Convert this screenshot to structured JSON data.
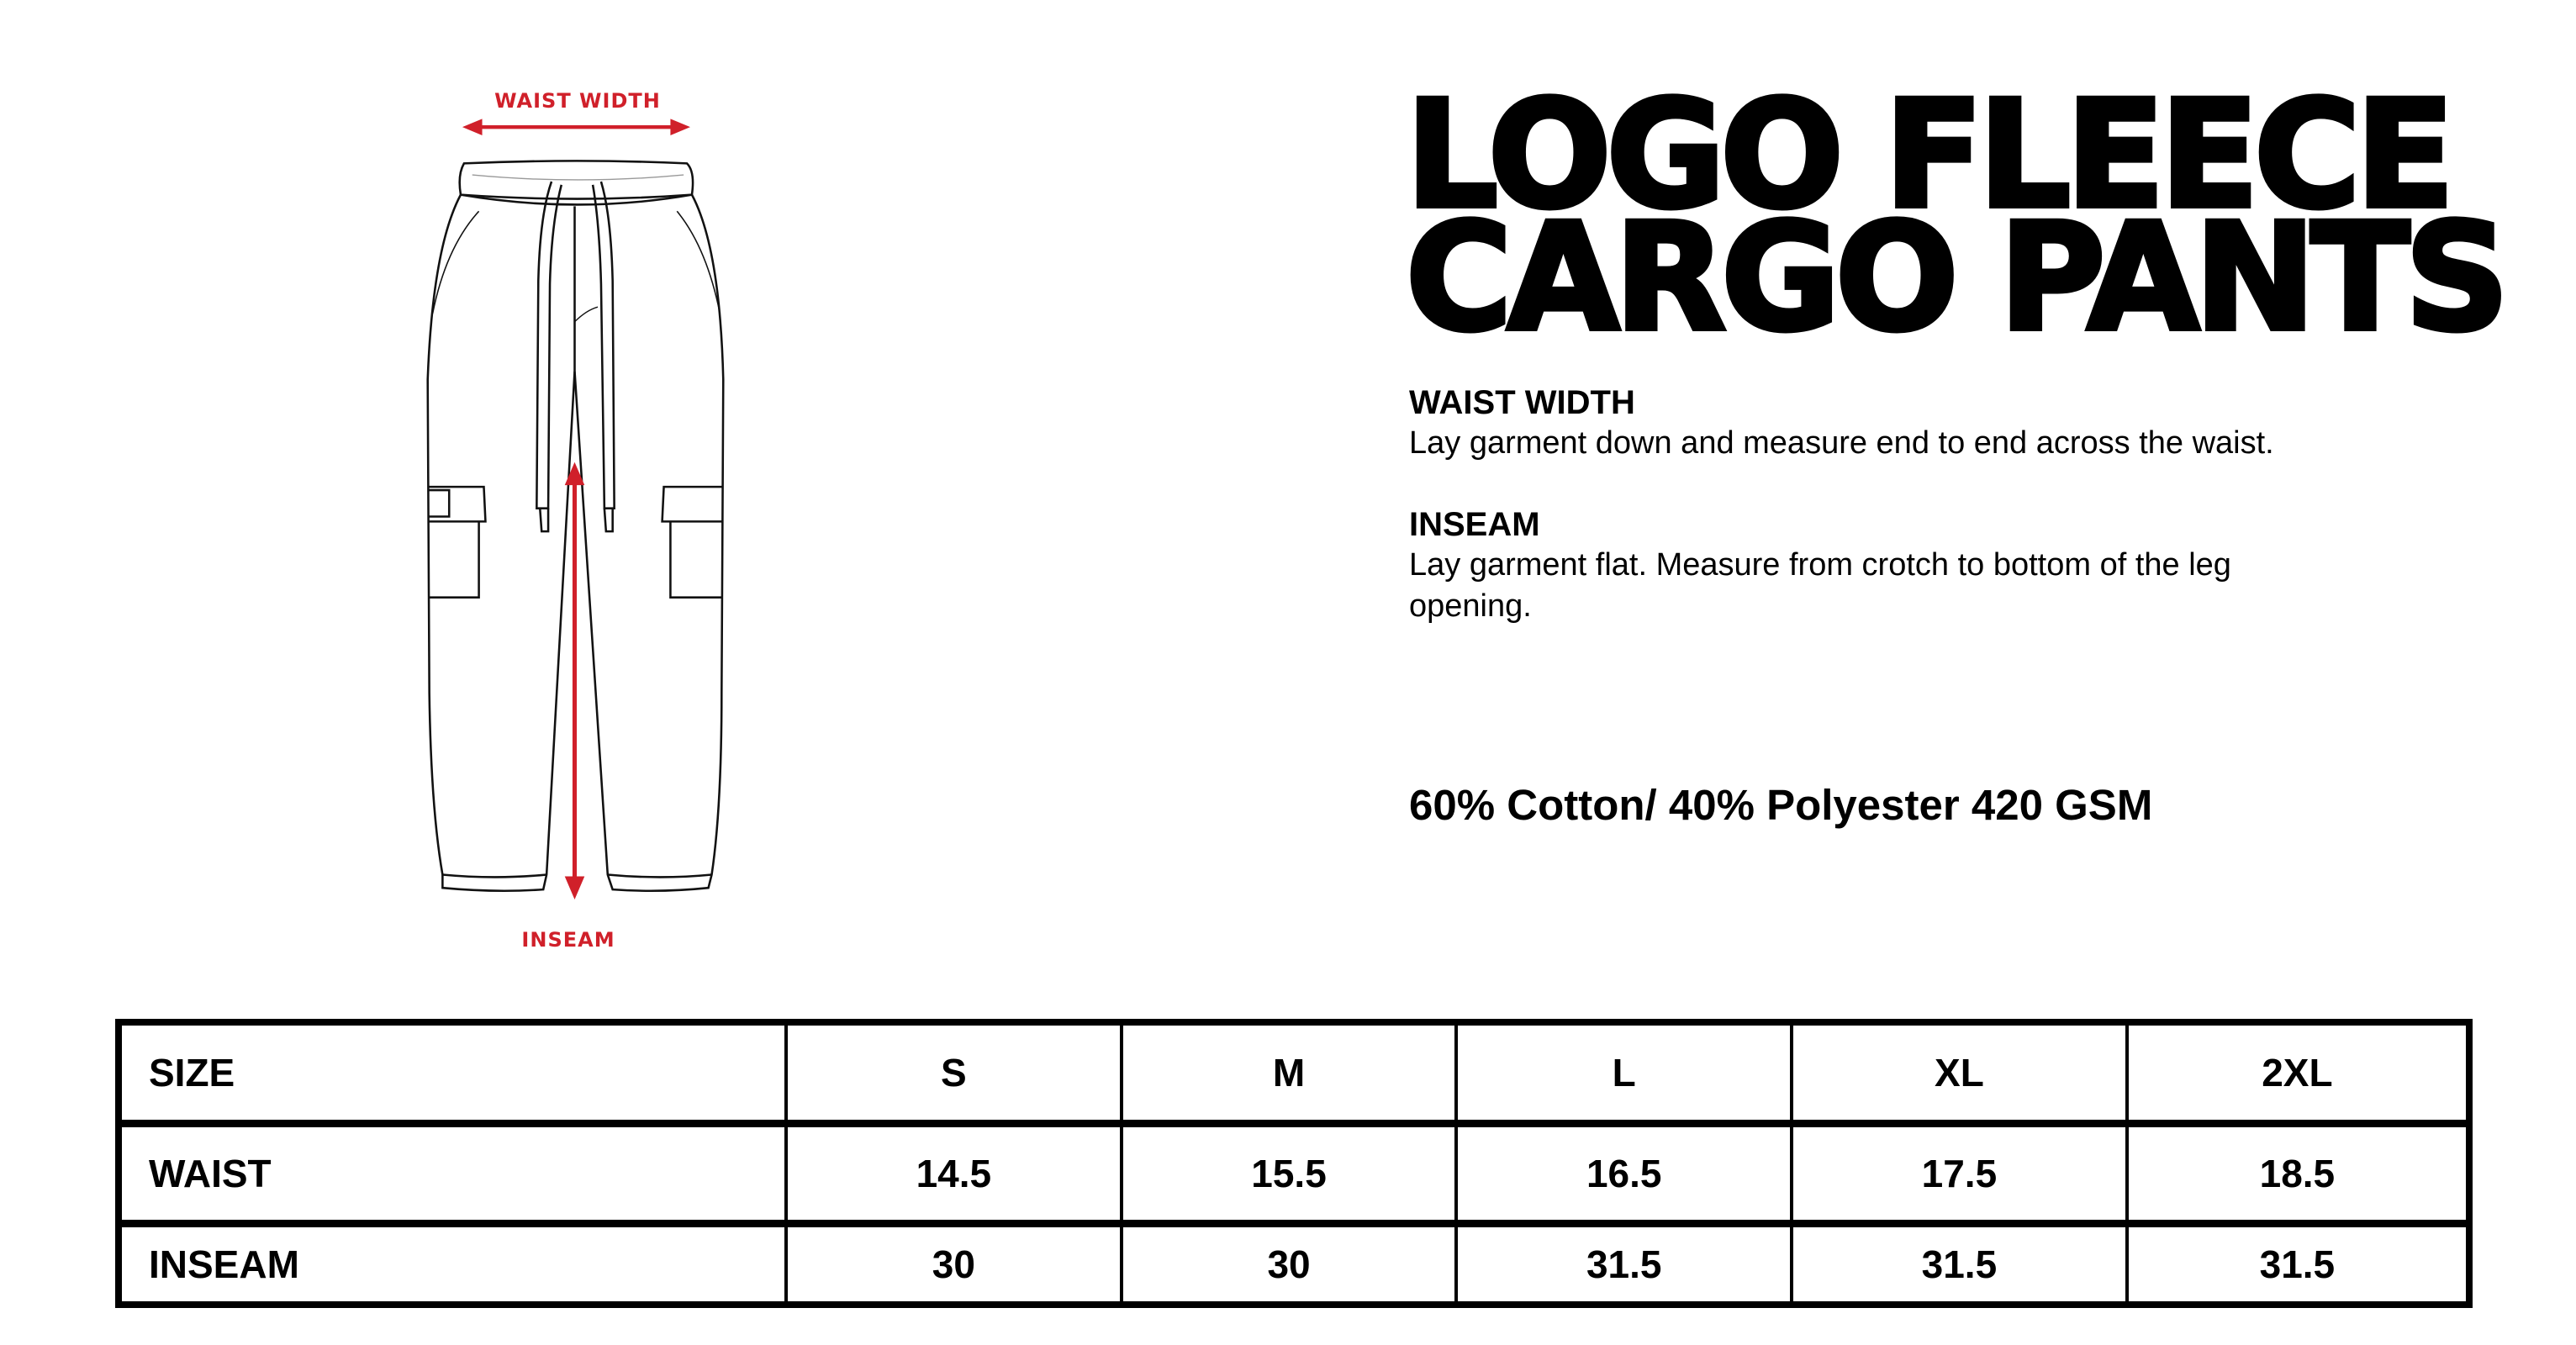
{
  "diagram": {
    "waist_label": "WAIST WIDTH",
    "inseam_label": "INSEAM",
    "accent_color": "#d0202a"
  },
  "title": {
    "line1": "LOGO FLEECE",
    "line2": "CARGO PANTS"
  },
  "instructions": [
    {
      "heading": "WAIST WIDTH",
      "text": "Lay garment down and measure end to end across the waist."
    },
    {
      "heading": "INSEAM",
      "text": "Lay garment flat. Measure from crotch to bottom of the leg opening."
    }
  ],
  "material": "60% Cotton/ 40% Polyester 420 GSM",
  "size_table": {
    "header": [
      "SIZE",
      "S",
      "M",
      "L",
      "XL",
      "2XL"
    ],
    "rows": [
      [
        "WAIST",
        "14.5",
        "15.5",
        "16.5",
        "17.5",
        "18.5"
      ],
      [
        "INSEAM",
        "30",
        "30",
        "31.5",
        "31.5",
        "31.5"
      ]
    ]
  }
}
